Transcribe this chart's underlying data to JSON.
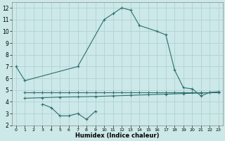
{
  "xlabel": "Humidex (Indice chaleur)",
  "line_color": "#2e6e6e",
  "bg_color": "#cce8e8",
  "grid_color": "#aacfcf",
  "yticks": [
    2,
    3,
    4,
    5,
    6,
    7,
    8,
    9,
    10,
    11,
    12
  ],
  "xticks": [
    0,
    1,
    2,
    3,
    4,
    5,
    6,
    7,
    8,
    9,
    10,
    11,
    12,
    13,
    14,
    15,
    16,
    17,
    18,
    19,
    20,
    21,
    22,
    23
  ],
  "curve1_x": [
    0,
    1,
    7,
    10,
    11,
    12,
    13,
    14,
    16,
    17,
    18,
    19,
    20,
    21,
    22,
    23
  ],
  "curve1_y": [
    7.0,
    5.8,
    7.0,
    11.0,
    11.5,
    12.0,
    11.8,
    10.5,
    10.0,
    9.7,
    6.7,
    5.2,
    5.1,
    4.5,
    4.8,
    4.85
  ],
  "curve2_x": [
    1,
    2,
    3,
    4,
    5,
    6,
    7,
    8,
    9,
    10,
    11,
    12,
    13,
    14,
    15,
    16,
    17,
    18,
    19,
    20,
    21,
    22,
    23
  ],
  "curve2_y": [
    4.8,
    4.8,
    4.8,
    4.8,
    4.8,
    4.8,
    4.8,
    4.8,
    4.8,
    4.8,
    4.8,
    4.8,
    4.8,
    4.8,
    4.8,
    4.8,
    4.8,
    4.8,
    4.8,
    4.8,
    4.8,
    4.8,
    4.8
  ],
  "curve3_x": [
    3,
    4,
    5,
    6,
    7,
    8,
    9
  ],
  "curve3_y": [
    3.8,
    3.5,
    2.8,
    2.8,
    3.0,
    2.5,
    3.2
  ],
  "curve4_x": [
    1,
    3,
    5,
    7,
    9,
    11,
    13,
    15,
    17,
    19,
    21,
    23
  ],
  "curve4_y": [
    4.3,
    4.35,
    4.4,
    4.42,
    4.45,
    4.5,
    4.55,
    4.6,
    4.65,
    4.7,
    4.75,
    4.8
  ]
}
